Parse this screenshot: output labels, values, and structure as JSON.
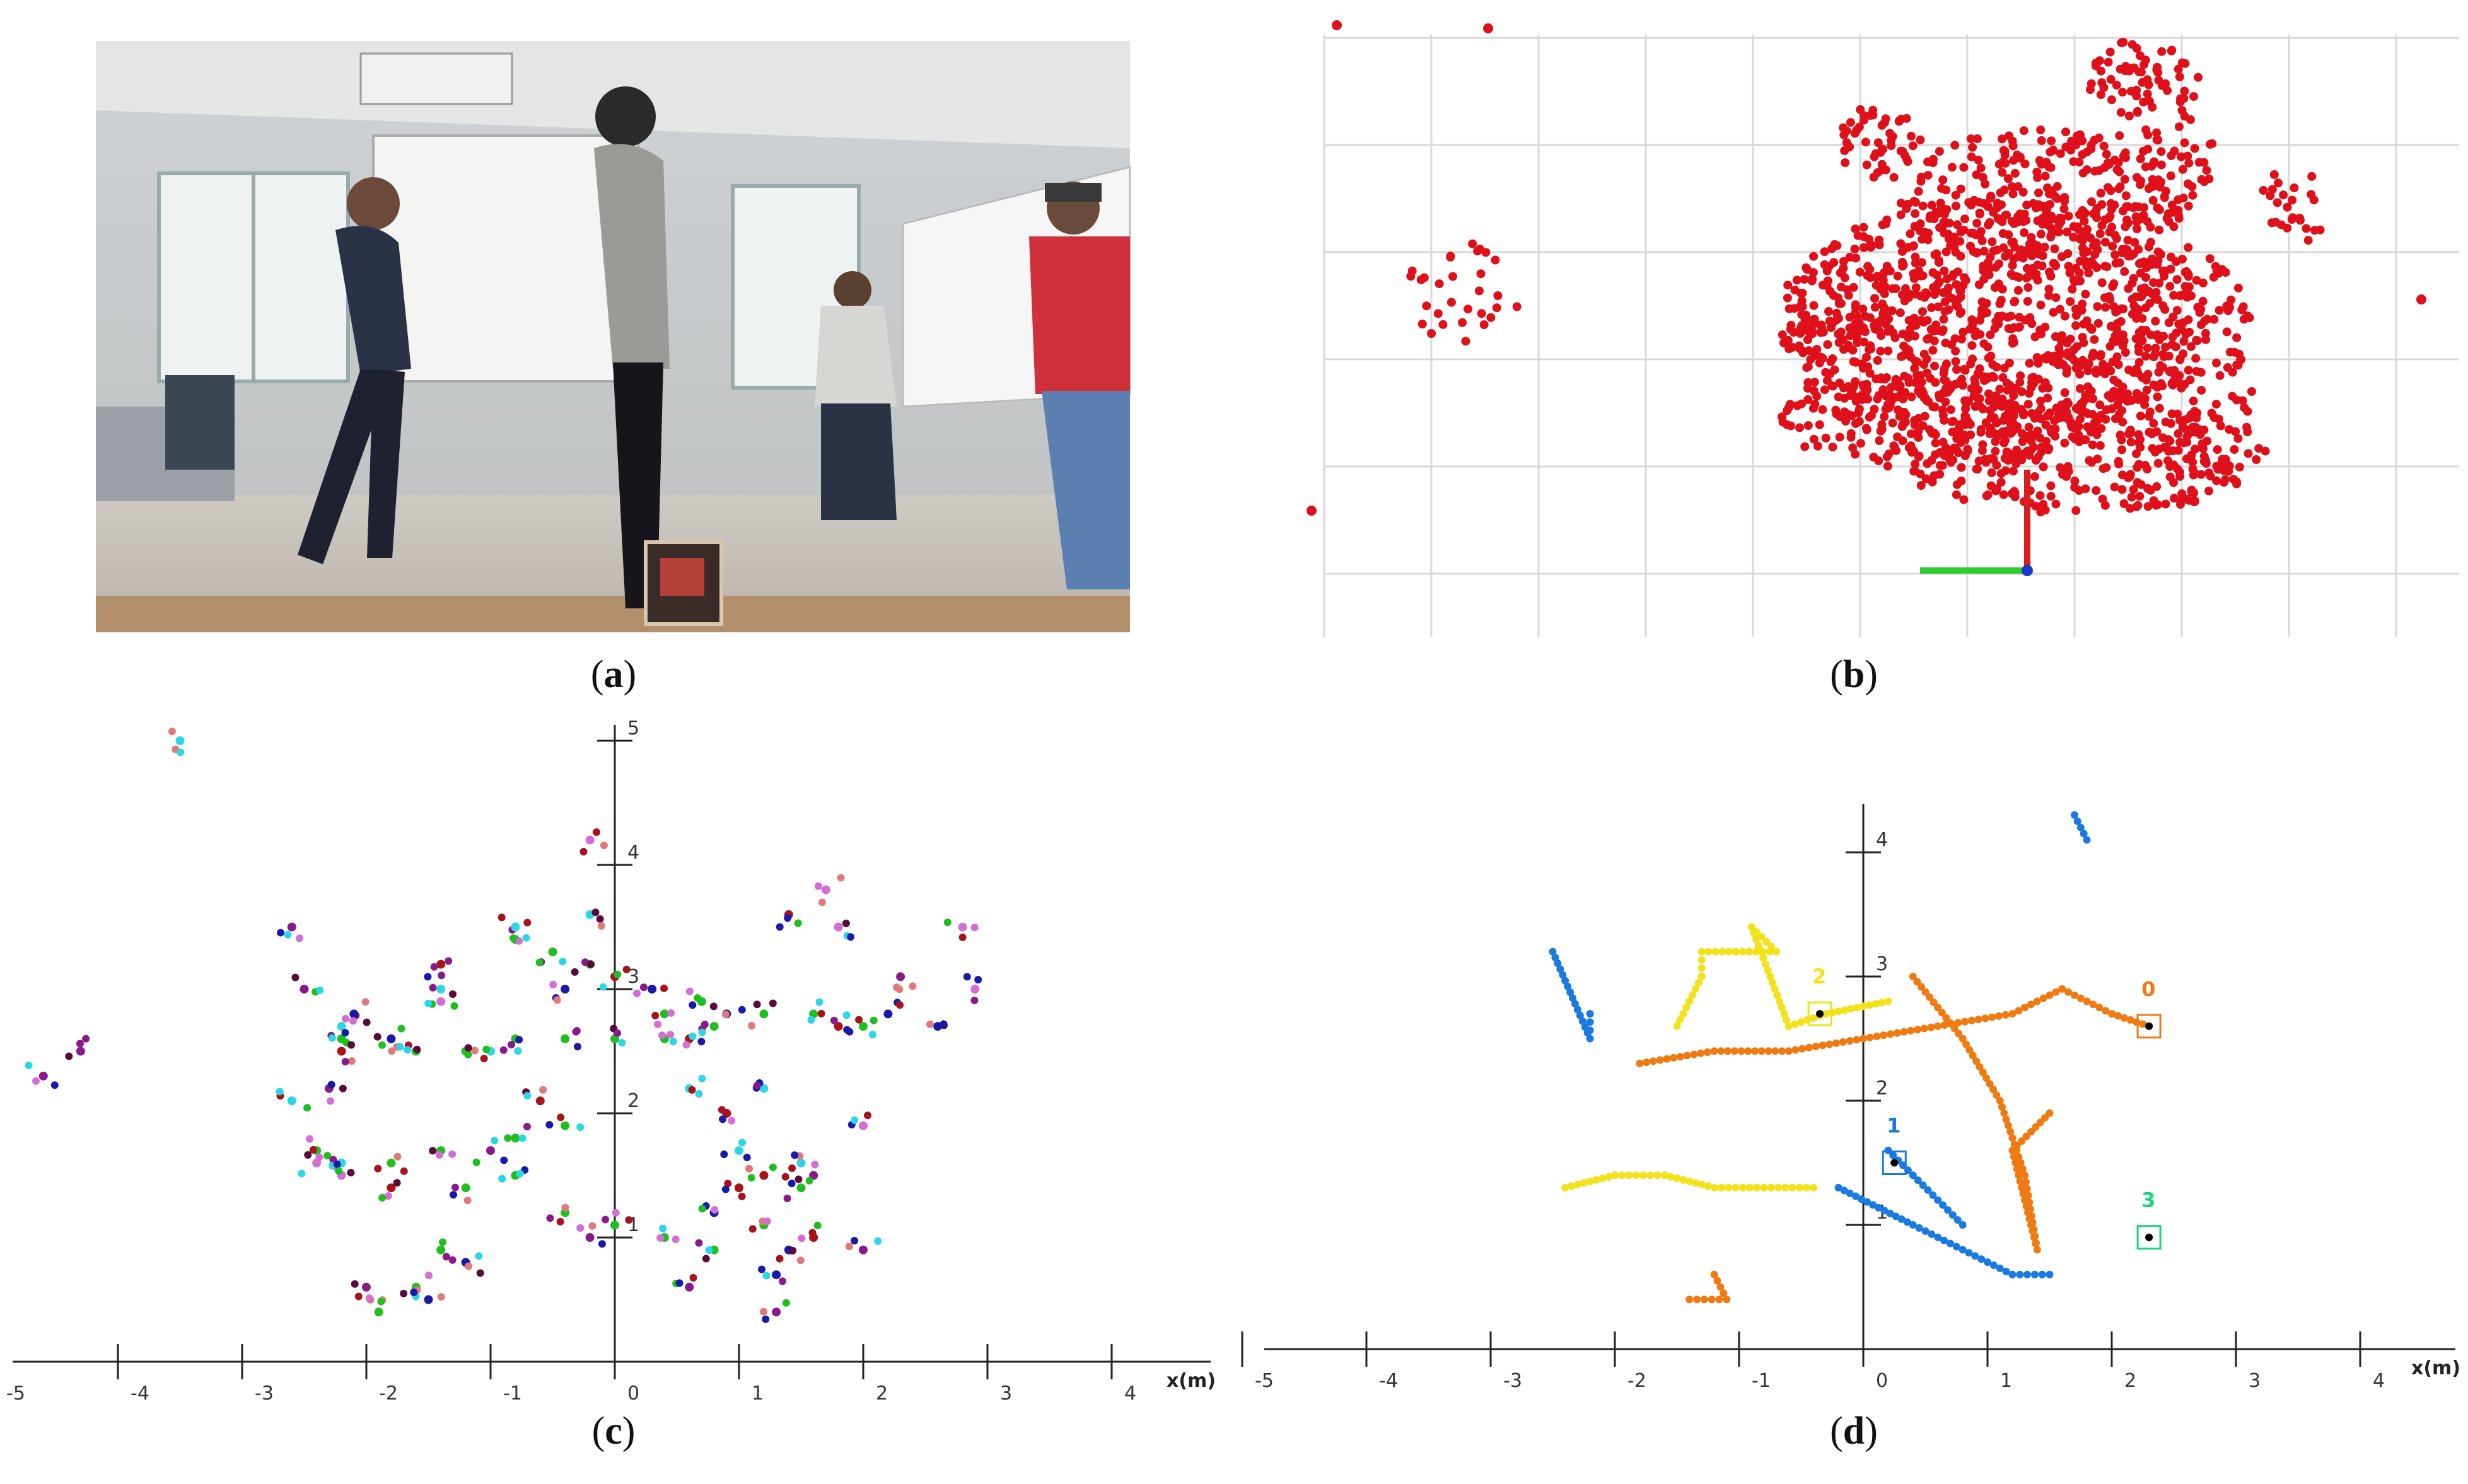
{
  "captions": {
    "a": "a",
    "b": "b",
    "c": "c",
    "d": "d"
  },
  "panel_a": {
    "description_icon": "photo-icon"
  },
  "panel_b": {
    "point_color": "#e0101a",
    "axis_red": "#d81e1e",
    "axis_green": "#2ecc2e",
    "axis_origin": "#1a3acc"
  },
  "panel_c": {
    "axis_unit_label": "x(m)",
    "x_ticks": [
      "-5",
      "-4",
      "-3",
      "-2",
      "-1",
      "0",
      "1",
      "2",
      "3",
      "4"
    ],
    "y_ticks": [
      "5",
      "4",
      "3",
      "2",
      "1"
    ],
    "colors": [
      "#1fbf1f",
      "#2dd6e6",
      "#1a1aa8",
      "#a8121a",
      "#8a1a8a",
      "#d46ed6",
      "#e07a7a",
      "#5a0a3a"
    ]
  },
  "panel_d": {
    "axis_unit_label": "x(m)",
    "x_ticks": [
      "-5",
      "-4",
      "-3",
      "-2",
      "-1",
      "0",
      "1",
      "2",
      "3",
      "4"
    ],
    "y_ticks": [
      "4",
      "3",
      "2",
      "1"
    ],
    "track_labels": [
      {
        "id": "0",
        "color": "#f07a12"
      },
      {
        "id": "1",
        "color": "#1a7ae0"
      },
      {
        "id": "2",
        "color": "#f2e21a"
      },
      {
        "id": "3",
        "color": "#1ad67a"
      }
    ]
  },
  "chart_data": [
    {
      "type": "scatter",
      "title": "",
      "xlabel": "x(m)",
      "ylabel": "",
      "xlim": [
        -5,
        4.5
      ],
      "ylim": [
        0,
        5
      ],
      "series": [
        {
          "points": [
            [
              -1.9,
              0.4
            ],
            [
              -1.6,
              0.6
            ],
            [
              -1.4,
              0.9
            ],
            [
              -1.2,
              1.4
            ],
            [
              -0.8,
              1.5
            ],
            [
              -0.4,
              1.2
            ],
            [
              0,
              1.1
            ],
            [
              0.4,
              1.0
            ],
            [
              0.8,
              0.9
            ],
            [
              1.2,
              1.1
            ],
            [
              1.5,
              1.4
            ],
            [
              -2.4,
              1.7
            ],
            [
              -1.8,
              1.6
            ],
            [
              -1.4,
              1.7
            ],
            [
              -0.8,
              1.8
            ],
            [
              -0.4,
              1.9
            ],
            [
              0,
              2.6
            ],
            [
              0.4,
              2.6
            ],
            [
              0.8,
              2.7
            ],
            [
              1.2,
              2.8
            ],
            [
              1.6,
              2.8
            ],
            [
              2.0,
              2.7
            ],
            [
              -2.2,
              2.6
            ],
            [
              -1.6,
              2.5
            ],
            [
              -1.2,
              2.5
            ],
            [
              -0.8,
              2.6
            ],
            [
              -0.4,
              2.6
            ],
            [
              -0.8,
              3.4
            ],
            [
              -0.5,
              3.3
            ],
            [
              -0.2,
              3.2
            ],
            [
              0.4,
              2.8
            ],
            [
              0.7,
              2.9
            ]
          ]
        },
        {
          "points": [
            [
              -3.5,
              5.0
            ],
            [
              -2.6,
              2.1
            ],
            [
              -2.2,
              1.6
            ],
            [
              -1.8,
              2.6
            ],
            [
              -1.4,
              3.0
            ],
            [
              -1.0,
              2.5
            ],
            [
              -0.8,
              3.5
            ],
            [
              -0.2,
              3.6
            ],
            [
              0.6,
              2.2
            ],
            [
              1.2,
              2.2
            ],
            [
              1.5,
              1.6
            ],
            [
              -2.2,
              2.7
            ],
            [
              1.0,
              1.7
            ]
          ]
        },
        {
          "points": [
            [
              -2.1,
              2.8
            ],
            [
              -1.8,
              2.6
            ],
            [
              -1.5,
              0.5
            ],
            [
              -1.2,
              0.8
            ],
            [
              -0.4,
              3.0
            ],
            [
              0.3,
              3.0
            ],
            [
              0.8,
              1.2
            ],
            [
              0.9,
              2.8
            ],
            [
              1.3,
              0.7
            ],
            [
              1.4,
              0.9
            ],
            [
              2.2,
              2.8
            ],
            [
              2.6,
              2.7
            ]
          ]
        },
        {
          "points": [
            [
              -2.2,
              2.5
            ],
            [
              -1.8,
              1.4
            ],
            [
              -1.4,
              3.2
            ],
            [
              -0.6,
              2.1
            ],
            [
              0,
              3.1
            ],
            [
              0.6,
              2.6
            ],
            [
              0.9,
              2.0
            ],
            [
              1.0,
              1.4
            ],
            [
              1.2,
              1.5
            ],
            [
              1.4,
              3.6
            ],
            [
              1.6,
              1.0
            ],
            [
              1.8,
              2.7
            ]
          ]
        },
        {
          "points": [
            [
              -2.6,
              3.5
            ],
            [
              -2.5,
              3.0
            ],
            [
              -2.3,
              2.2
            ],
            [
              -2.0,
              0.6
            ],
            [
              -1.0,
              1.7
            ],
            [
              -0.2,
              1.0
            ],
            [
              0.6,
              0.6
            ],
            [
              1.3,
              0.4
            ],
            [
              1.6,
              1.5
            ],
            [
              2.0,
              0.9
            ],
            [
              2.3,
              3.1
            ],
            [
              -4.6,
              2.3
            ],
            [
              -4.3,
              2.5
            ]
          ]
        },
        {
          "points": [
            [
              -2.4,
              1.6
            ],
            [
              -2.2,
              1.5
            ],
            [
              -1.4,
              2.9
            ],
            [
              1.7,
              3.8
            ],
            [
              1.8,
              3.5
            ],
            [
              2.8,
              3.5
            ],
            [
              2.9,
              3.0
            ],
            [
              -0.2,
              4.2
            ],
            [
              2.0,
              1.9
            ]
          ]
        }
      ]
    },
    {
      "type": "scatter",
      "title": "",
      "xlabel": "x(m)",
      "ylabel": "",
      "xlim": [
        -5,
        4.5
      ],
      "ylim": [
        0,
        4.5
      ],
      "series": [
        {
          "name": "0",
          "points": [
            [
              -1.8,
              2.3
            ],
            [
              -1.2,
              2.4
            ],
            [
              -0.6,
              2.4
            ],
            [
              0,
              2.5
            ],
            [
              0.6,
              2.6
            ],
            [
              1.2,
              2.7
            ],
            [
              1.6,
              2.9
            ],
            [
              2.0,
              2.7
            ],
            [
              2.3,
              2.6
            ],
            [
              0.4,
              3.0
            ],
            [
              0.8,
              2.5
            ],
            [
              1.1,
              2.0
            ],
            [
              1.3,
              1.4
            ],
            [
              1.4,
              0.8
            ],
            [
              1.2,
              1.6
            ],
            [
              1.5,
              1.9
            ],
            [
              -1.4,
              0.4
            ],
            [
              -1.1,
              0.4
            ],
            [
              -1.2,
              0.6
            ]
          ]
        },
        {
          "name": "1",
          "points": [
            [
              0.2,
              1.6
            ],
            [
              0.4,
              1.4
            ],
            [
              0.6,
              1.2
            ],
            [
              0.8,
              1.0
            ],
            [
              -0.2,
              1.3
            ],
            [
              0.4,
              1.0
            ],
            [
              0.8,
              0.8
            ],
            [
              1.2,
              0.6
            ],
            [
              1.5,
              0.6
            ],
            [
              1.7,
              4.3
            ],
            [
              1.8,
              4.1
            ],
            [
              -2.5,
              3.2
            ],
            [
              -2.2,
              2.5
            ],
            [
              -2.2,
              2.7
            ]
          ]
        },
        {
          "name": "2",
          "points": [
            [
              -2.4,
              1.3
            ],
            [
              -2.0,
              1.4
            ],
            [
              -1.6,
              1.4
            ],
            [
              -1.2,
              1.3
            ],
            [
              -0.8,
              1.3
            ],
            [
              -0.4,
              1.3
            ],
            [
              -1.5,
              2.6
            ],
            [
              -1.3,
              3.0
            ],
            [
              -1.3,
              3.2
            ],
            [
              -0.7,
              3.2
            ],
            [
              -0.9,
              3.4
            ],
            [
              -0.6,
              2.6
            ],
            [
              -0.3,
              2.7
            ],
            [
              0.2,
              2.8
            ]
          ]
        },
        {
          "name": "3",
          "points": [
            [
              2.3,
              0.9
            ]
          ]
        }
      ]
    }
  ]
}
